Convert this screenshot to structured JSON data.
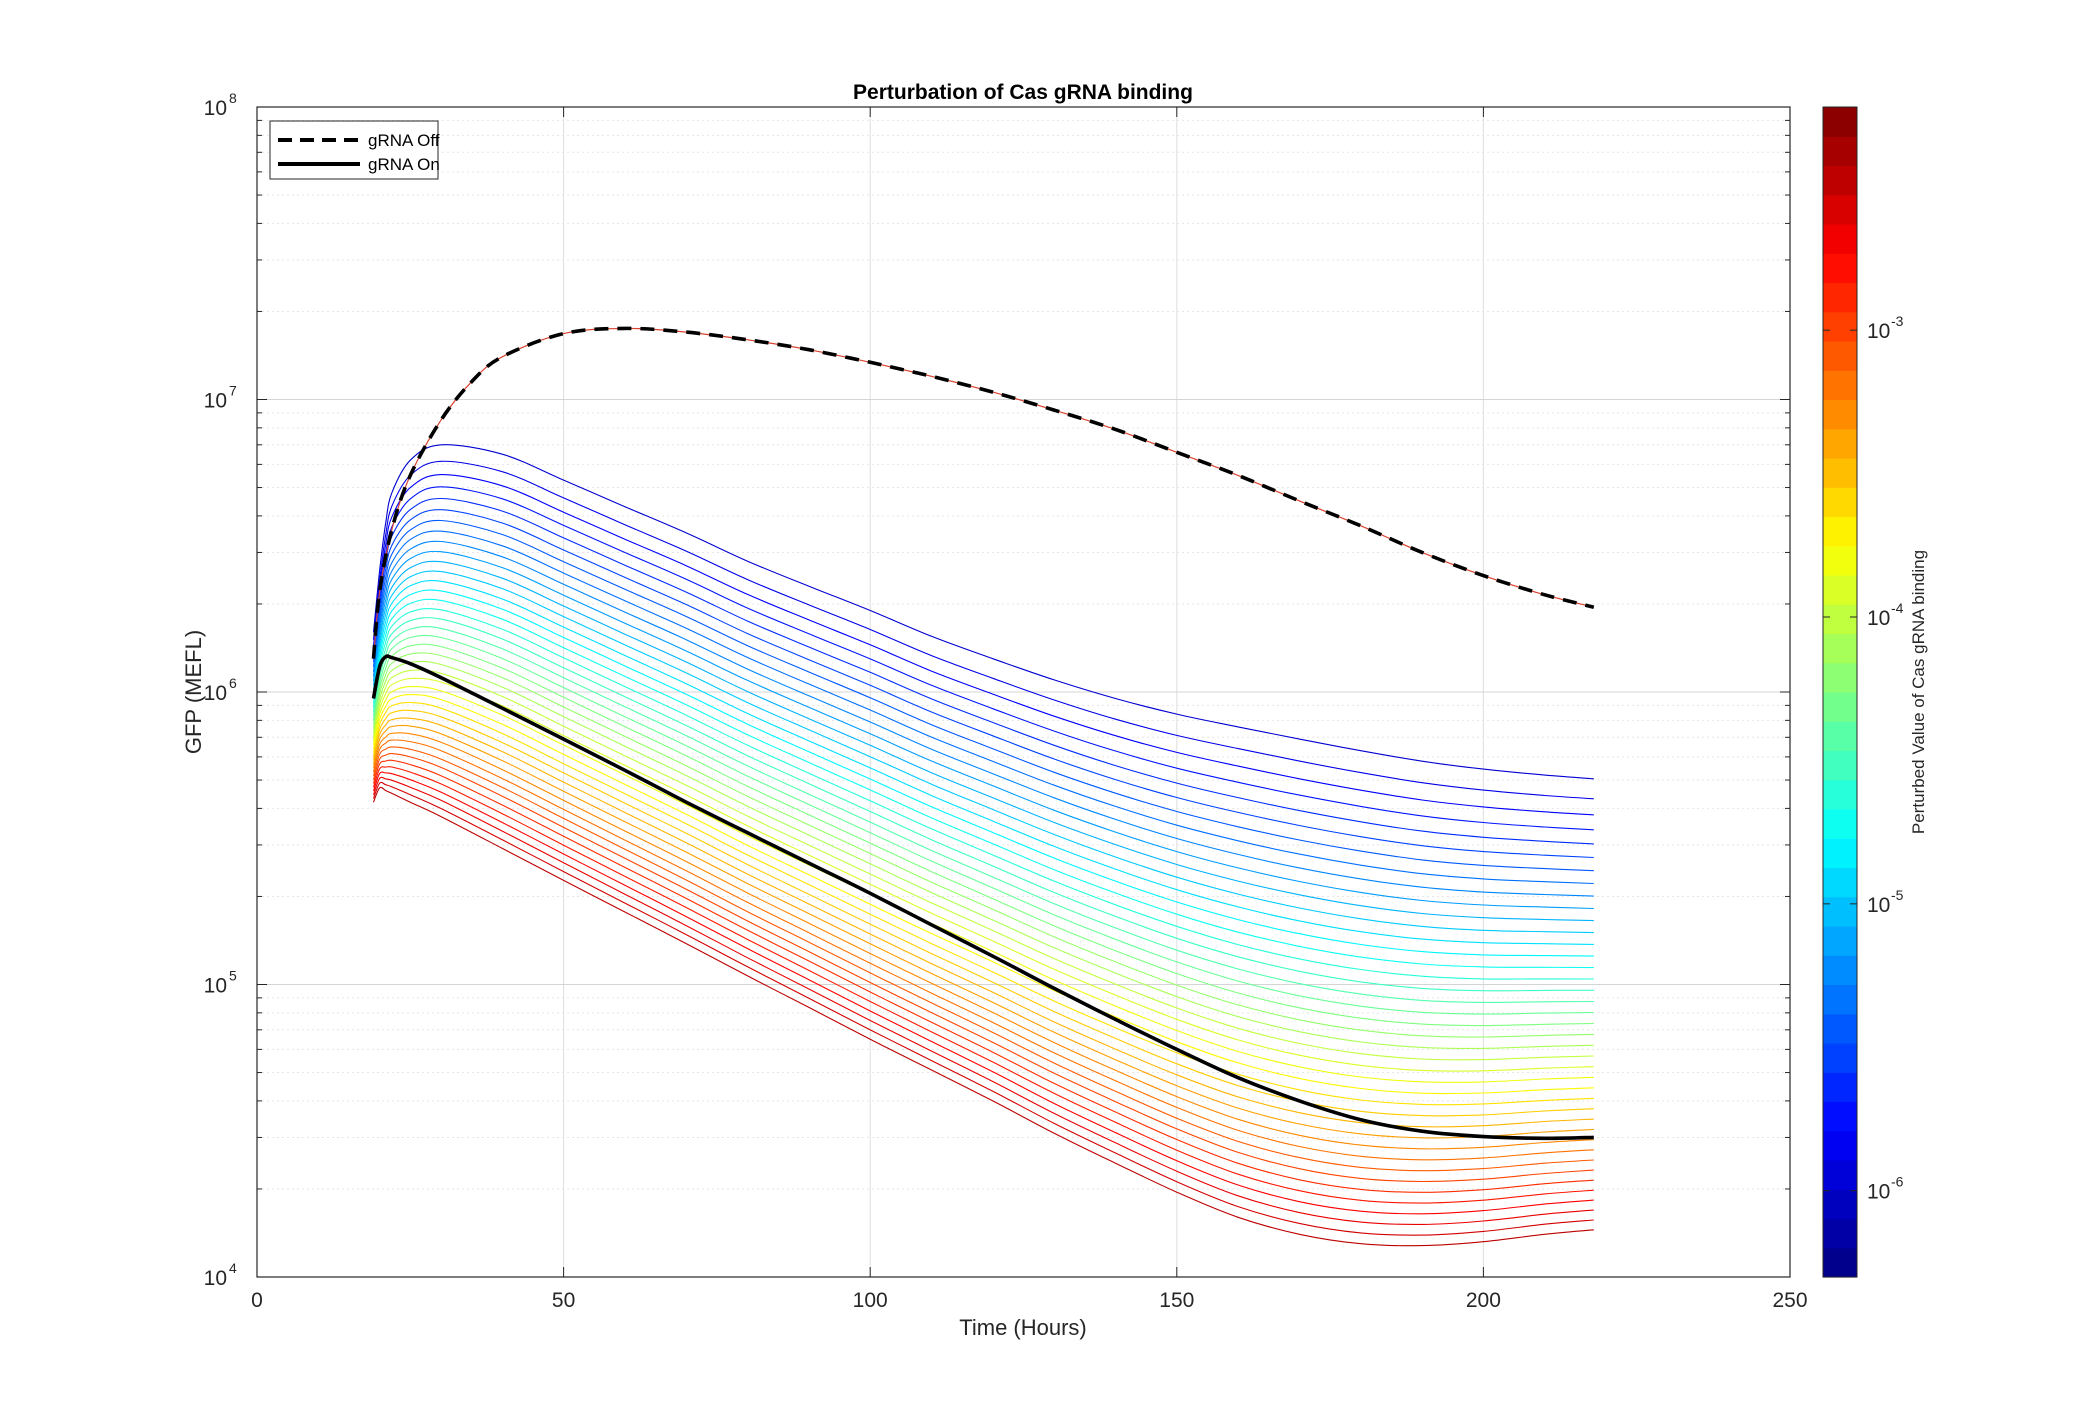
{
  "chart_data": {
    "type": "line",
    "title": "Perturbation of Cas gRNA binding",
    "xlabel": "Time (Hours)",
    "ylabel": "GFP (MEFL)",
    "xscale": "linear",
    "yscale": "log",
    "xlim": [
      0,
      250
    ],
    "ylim": [
      10000,
      100000000
    ],
    "x_ticks": [
      "0",
      "50",
      "100",
      "150",
      "200",
      "250"
    ],
    "x_tick_values": [
      0,
      50,
      100,
      150,
      200,
      250
    ],
    "y_ticks": [
      {
        "base": "10",
        "exp": "4",
        "value": 10000
      },
      {
        "base": "10",
        "exp": "5",
        "value": 100000
      },
      {
        "base": "10",
        "exp": "6",
        "value": 1000000
      },
      {
        "base": "10",
        "exp": "7",
        "value": 10000000
      },
      {
        "base": "10",
        "exp": "8",
        "value": 100000000
      }
    ],
    "grid": true,
    "legend": {
      "location": "top-left",
      "entries": [
        {
          "label": "gRNA Off",
          "style": "dashed",
          "color": "#000000"
        },
        {
          "label": "gRNA On",
          "style": "solid",
          "color": "#000000"
        }
      ]
    },
    "series": [
      {
        "name": "gRNA Off",
        "style": "dashed",
        "color": "#000000",
        "x": [
          19,
          20,
          22,
          25,
          30,
          35,
          40,
          50,
          60,
          70,
          80,
          90,
          100,
          110,
          120,
          130,
          140,
          150,
          160,
          170,
          180,
          190,
          200,
          210,
          218
        ],
        "y": [
          1300000,
          2200000,
          3600000,
          5500000,
          8500000,
          11500000,
          14000000,
          16800000,
          17500000,
          17000000,
          16000000,
          14800000,
          13400000,
          12000000,
          10600000,
          9200000,
          7900000,
          6600000,
          5500000,
          4500000,
          3700000,
          3000000,
          2500000,
          2150000,
          1950000
        ]
      },
      {
        "name": "gRNA On",
        "style": "solid",
        "color": "#000000",
        "x": [
          19,
          20,
          21,
          22,
          25,
          30,
          40,
          50,
          60,
          70,
          80,
          90,
          100,
          110,
          120,
          130,
          140,
          150,
          160,
          170,
          180,
          190,
          200,
          210,
          218
        ],
        "y": [
          950000,
          1220000,
          1320000,
          1310000,
          1250000,
          1120000,
          880000,
          690000,
          540000,
          420000,
          330000,
          260000,
          205000,
          160000,
          125000,
          97000,
          76000,
          60000,
          48000,
          40000,
          34500,
          31500,
          30200,
          29800,
          30000
        ]
      }
    ],
    "perturbation_sweep": {
      "count": 40,
      "x": [
        19,
        20,
        21,
        22,
        25,
        30,
        40,
        50,
        60,
        70,
        80,
        90,
        100,
        110,
        120,
        130,
        140,
        150,
        160,
        170,
        180,
        190,
        200,
        210,
        218
      ],
      "low_binding_curve": [
        1600000,
        2600000,
        3800000,
        4800000,
        6200000,
        7000000,
        6500000,
        5300000,
        4300000,
        3500000,
        2800000,
        2300000,
        1900000,
        1550000,
        1300000,
        1100000,
        950000,
        840000,
        760000,
        690000,
        630000,
        580000,
        545000,
        520000,
        505000
      ],
      "high_binding_curve": [
        420000,
        470000,
        460000,
        450000,
        420000,
        375000,
        292000,
        227000,
        177000,
        138000,
        107000,
        83500,
        65000,
        51000,
        40000,
        31000,
        24500,
        19500,
        16000,
        14000,
        13000,
        12800,
        13200,
        14000,
        14500
      ]
    },
    "colorbar": {
      "label": "Perturbed Value of Cas gRNA binding",
      "scale": "log",
      "range": [
        5e-07,
        0.006
      ],
      "ticks": [
        {
          "base": "10",
          "exp": "-6",
          "value": 1e-06
        },
        {
          "base": "10",
          "exp": "-5",
          "value": 1e-05
        },
        {
          "base": "10",
          "exp": "-4",
          "value": 0.0001
        },
        {
          "base": "10",
          "exp": "-3",
          "value": 0.001
        }
      ],
      "colormap": "jet",
      "levels": 40
    }
  }
}
